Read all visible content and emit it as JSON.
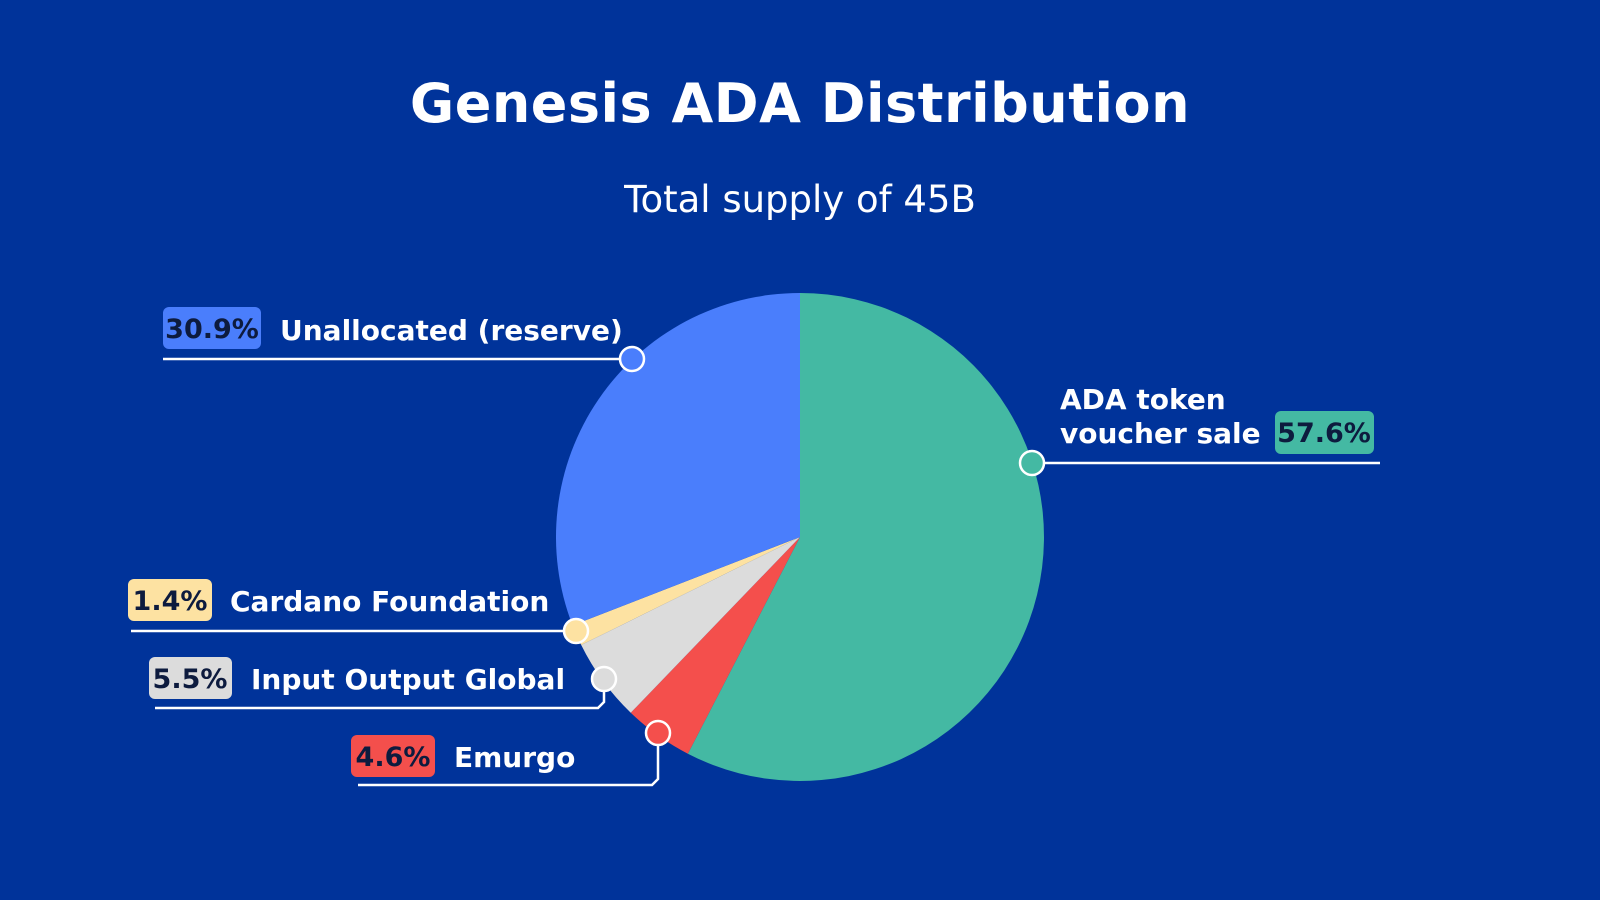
{
  "chart_data": {
    "type": "pie",
    "title": "Genesis ADA Distribution",
    "subtitle": "Total supply of 45B",
    "slices": [
      {
        "label": "ADA token voucher sale",
        "label_lines": [
          "ADA token",
          "voucher sale"
        ],
        "value": 57.6,
        "value_label": "57.6%",
        "color": "#44b9a3"
      },
      {
        "label": "Emurgo",
        "label_lines": [
          "Emurgo"
        ],
        "value": 4.6,
        "value_label": "4.6%",
        "color": "#f44f4c"
      },
      {
        "label": "Input Output Global",
        "label_lines": [
          "Input Output Global"
        ],
        "value": 5.5,
        "value_label": "5.5%",
        "color": "#dcdcdc"
      },
      {
        "label": "Cardano Foundation",
        "label_lines": [
          "Cardano Foundation"
        ],
        "value": 1.4,
        "value_label": "1.4%",
        "color": "#fde2a2"
      },
      {
        "label": "Unallocated (reserve)",
        "label_lines": [
          "Unallocated (reserve)"
        ],
        "value": 30.9,
        "value_label": "30.9%",
        "color": "#4a7efc"
      }
    ],
    "start_angle": "12 o'clock",
    "direction": "clockwise",
    "legend": "none"
  },
  "colors": {
    "background": "#00339a",
    "text": "#ffffff",
    "badge_text": "#0d1b3e"
  }
}
